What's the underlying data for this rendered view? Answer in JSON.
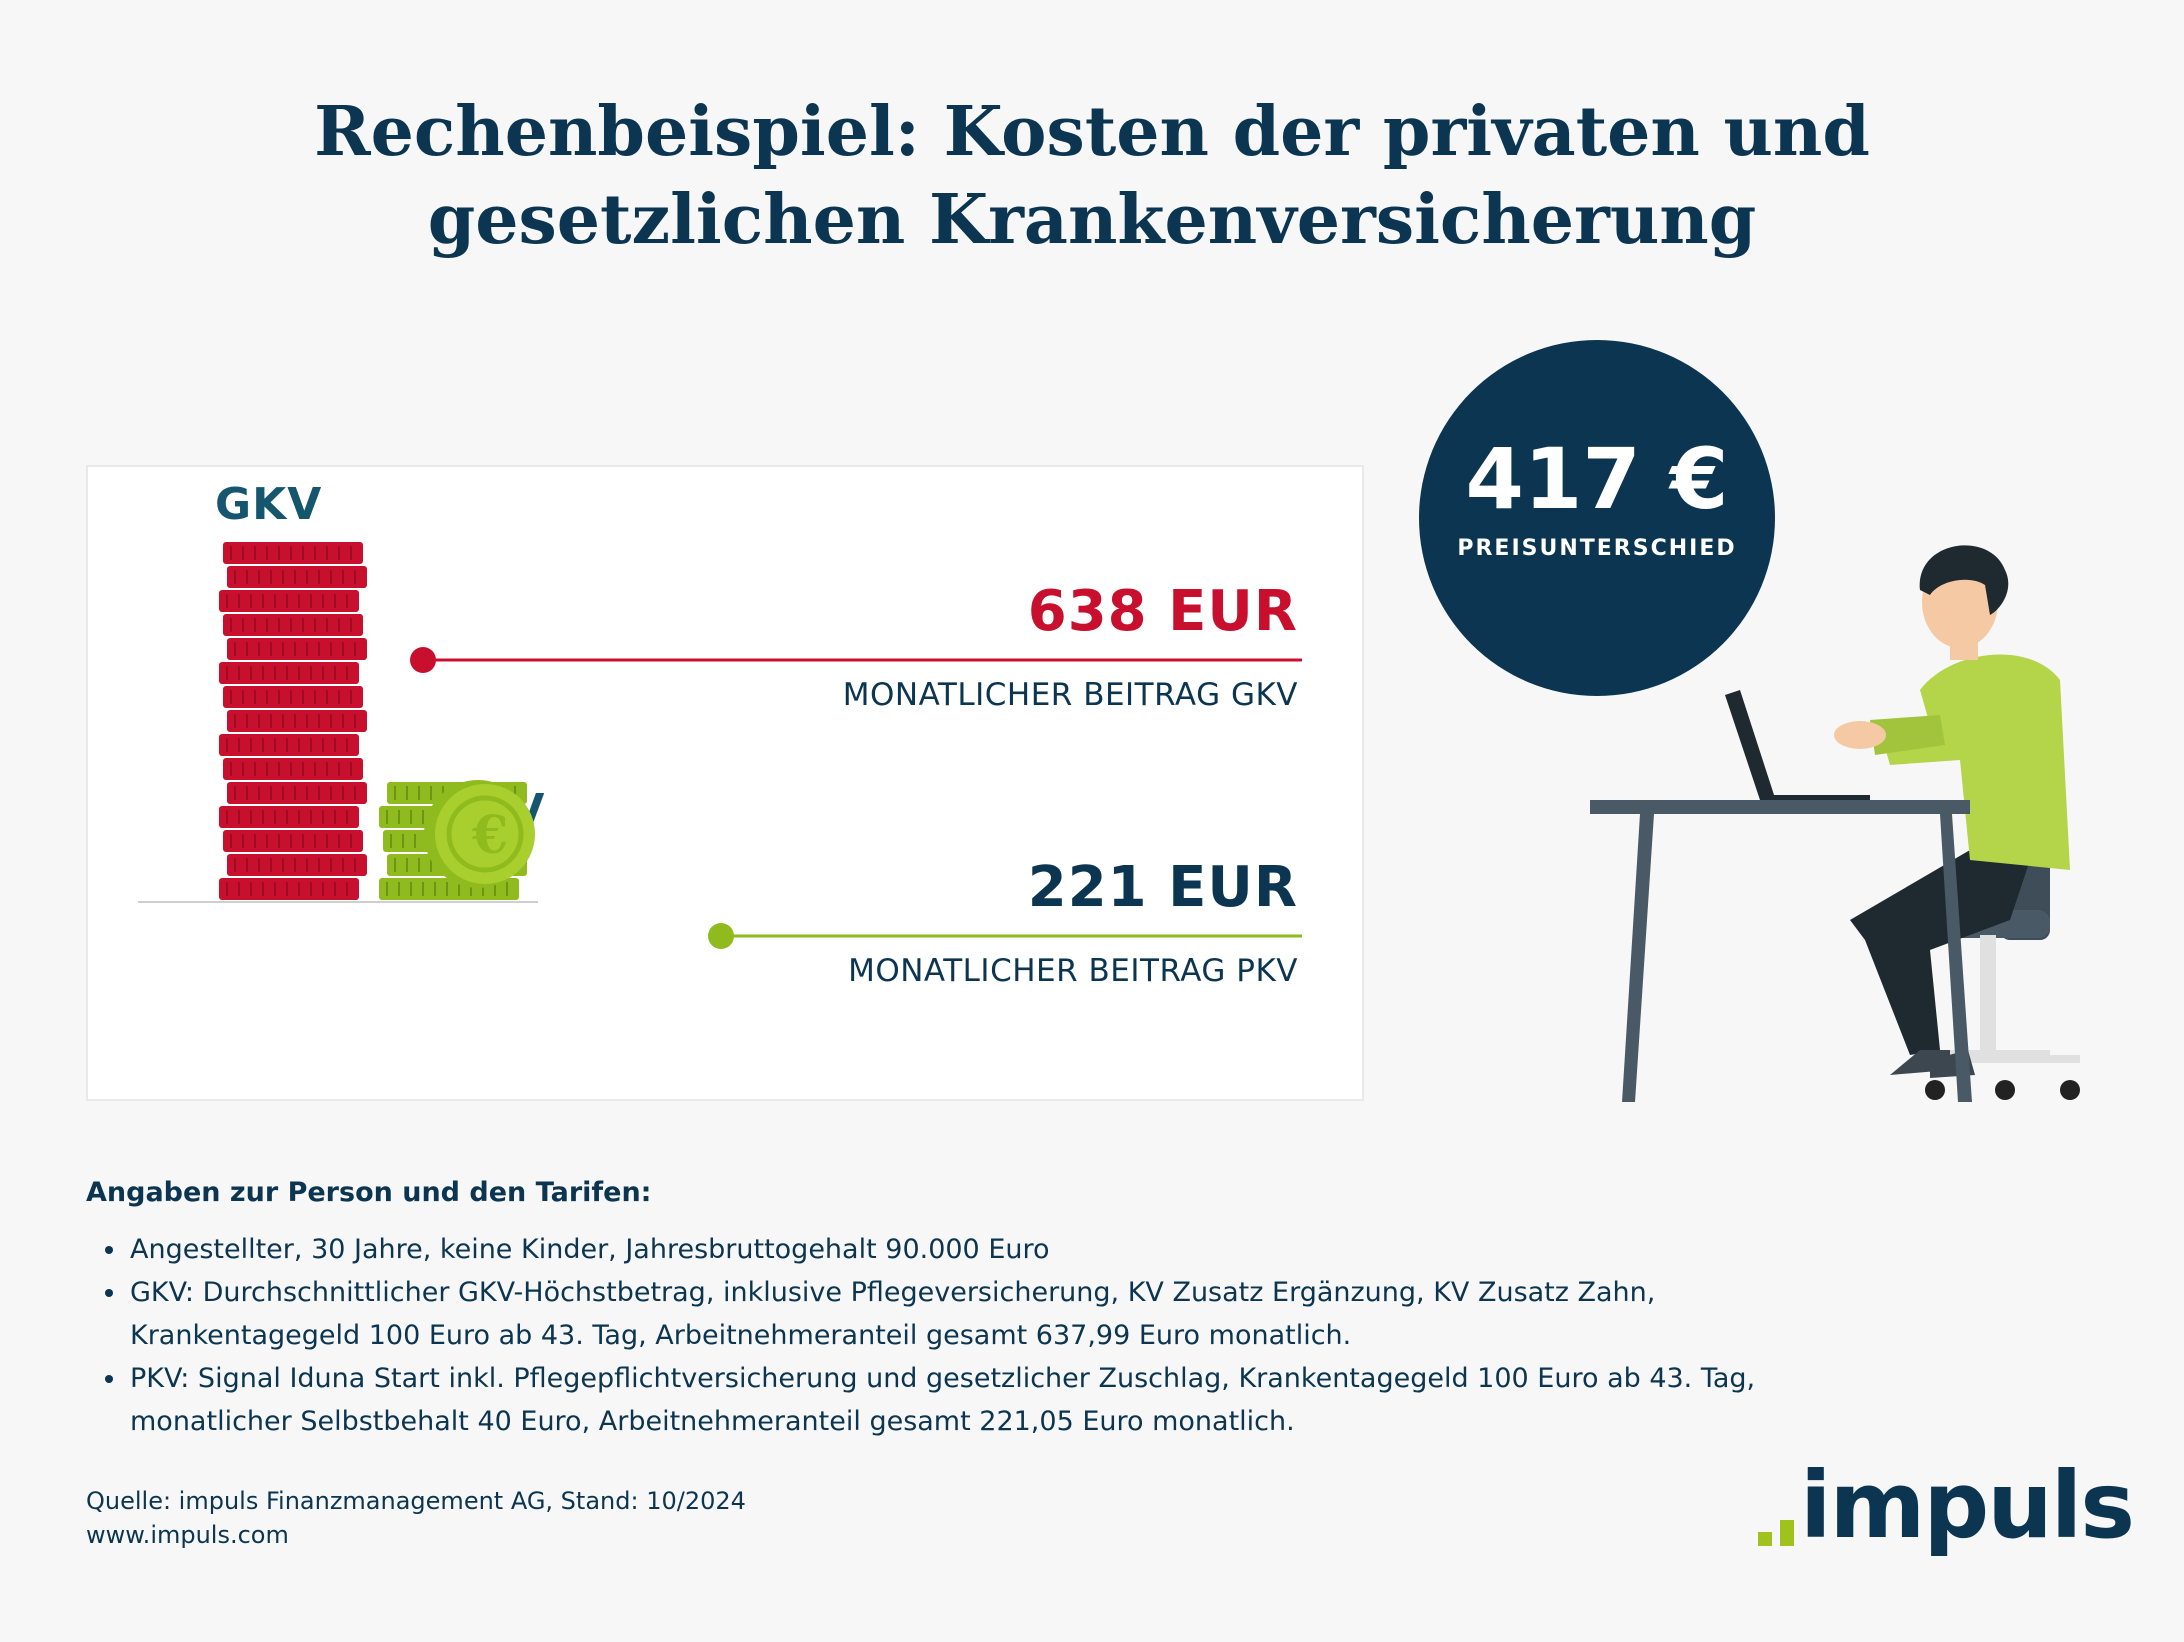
{
  "title": {
    "line1": "Rechenbeispiel: Kosten der privaten und",
    "line2": "gesetzlichen Krankenversicherung"
  },
  "comparison": {
    "gkv": {
      "label": "GKV",
      "amount": "638 EUR",
      "caption": "MONATLICHER BEITRAG GKV",
      "value": 638,
      "color": "#c8102e"
    },
    "pkv": {
      "label": "PKV",
      "amount": "221 EUR",
      "caption": "MONATLICHER BEITRAG PKV",
      "value": 221,
      "color": "#8fbb1e"
    }
  },
  "difference": {
    "value": "417 €",
    "label": "PREISUNTERSCHIED"
  },
  "notes": {
    "heading": "Angaben zur Person und den Tarifen:",
    "items": [
      "Angestellter, 30 Jahre, keine Kinder, Jahresbruttogehalt 90.000 Euro",
      "GKV: Durchschnittlicher GKV-Höchstbetrag, inklusive Pflegeversicherung, KV Zusatz Ergänzung, KV Zusatz Zahn, Krankentagegeld 100 Euro ab 43. Tag, Arbeitnehmeranteil gesamt 637,99 Euro monatlich.",
      "PKV: Signal Iduna Start inkl. Pflegepflichtversicherung und gesetzlicher Zuschlag, Krankentagegeld 100 Euro ab 43. Tag, monatlicher Selbstbehalt 40 Euro, Arbeitnehmeranteil gesamt 221,05 Euro monatlich."
    ]
  },
  "source": {
    "line1": "Quelle: impuls Finanzmanagement AG, Stand: 10/2024",
    "line2": "www.impuls.com"
  },
  "logo": {
    "text": "impuls",
    "accent_color": "#9fc31c",
    "text_color": "#0b3550"
  },
  "illustration": {
    "icons": [
      "coin-stack-icon",
      "euro-coin-icon",
      "person-at-desk-illustration",
      "laptop-icon",
      "chair-icon"
    ]
  }
}
